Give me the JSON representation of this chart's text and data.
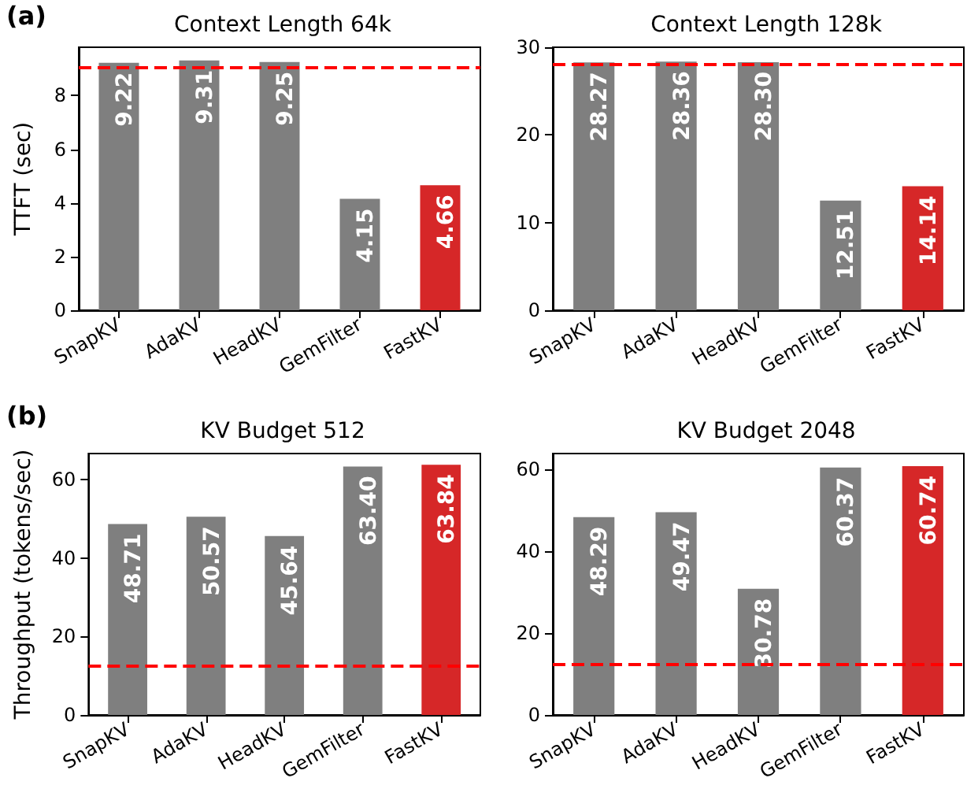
{
  "chart_data": [
    {
      "type": "bar",
      "title": "Context Length 64k",
      "ylabel": "TTFT (sec)",
      "annotations": [
        "(a)"
      ],
      "categories": [
        "SnapKV",
        "AdaKV",
        "HeadKV",
        "GemFilter",
        "FastKV"
      ],
      "values": [
        9.22,
        9.31,
        9.25,
        4.15,
        4.66
      ],
      "colors": [
        "#7f7f7f",
        "#7f7f7f",
        "#7f7f7f",
        "#7f7f7f",
        "#d62728"
      ],
      "ylim": [
        0,
        9.8
      ],
      "yticks": [
        0,
        2,
        4,
        6,
        8
      ],
      "data_labels": true,
      "ref_lines": [
        {
          "axis": "y",
          "value": 9.04,
          "color": "#ff0000",
          "line_style": "dashed"
        }
      ]
    },
    {
      "type": "bar",
      "title": "Context Length 128k",
      "categories": [
        "SnapKV",
        "AdaKV",
        "HeadKV",
        "GemFilter",
        "FastKV"
      ],
      "values": [
        28.27,
        28.36,
        28.3,
        12.51,
        14.14
      ],
      "value_labels": [
        "28.27",
        "28.36",
        "28.30",
        "12.51",
        "14.14"
      ],
      "colors": [
        "#7f7f7f",
        "#7f7f7f",
        "#7f7f7f",
        "#7f7f7f",
        "#d62728"
      ],
      "ylim": [
        0,
        30
      ],
      "yticks": [
        0,
        10,
        20,
        30
      ],
      "data_labels": true,
      "ref_lines": [
        {
          "axis": "y",
          "value": 28.0,
          "color": "#ff0000",
          "line_style": "dashed"
        }
      ]
    },
    {
      "type": "bar",
      "title": "KV Budget 512",
      "ylabel": "Throughput (tokens/sec)",
      "annotations": [
        "(b)"
      ],
      "categories": [
        "SnapKV",
        "AdaKV",
        "HeadKV",
        "GemFilter",
        "FastKV"
      ],
      "values": [
        48.71,
        50.57,
        45.64,
        63.4,
        63.84
      ],
      "value_labels": [
        "48.71",
        "50.57",
        "45.64",
        "63.40",
        "63.84"
      ],
      "colors": [
        "#7f7f7f",
        "#7f7f7f",
        "#7f7f7f",
        "#7f7f7f",
        "#d62728"
      ],
      "ylim": [
        0,
        66.7
      ],
      "yticks": [
        0,
        20,
        40,
        60
      ],
      "ref_lines": [
        {
          "axis": "y",
          "value": 12.6,
          "color": "#ff0000",
          "line_style": "dashed"
        }
      ]
    },
    {
      "type": "bar",
      "title": "KV Budget 2048",
      "categories": [
        "SnapKV",
        "AdaKV",
        "HeadKV",
        "GemFilter",
        "FastKV"
      ],
      "values": [
        48.29,
        49.47,
        30.78,
        60.37,
        60.74
      ],
      "colors": [
        "#7f7f7f",
        "#7f7f7f",
        "#7f7f7f",
        "#7f7f7f",
        "#d62728"
      ],
      "ylim": [
        0,
        63.8
      ],
      "yticks": [
        0,
        20,
        40,
        60
      ],
      "data_labels": true,
      "ref_lines": [
        {
          "axis": "y",
          "value": 12.5,
          "color": "#ff0000",
          "line_style": "dashed"
        }
      ]
    }
  ]
}
